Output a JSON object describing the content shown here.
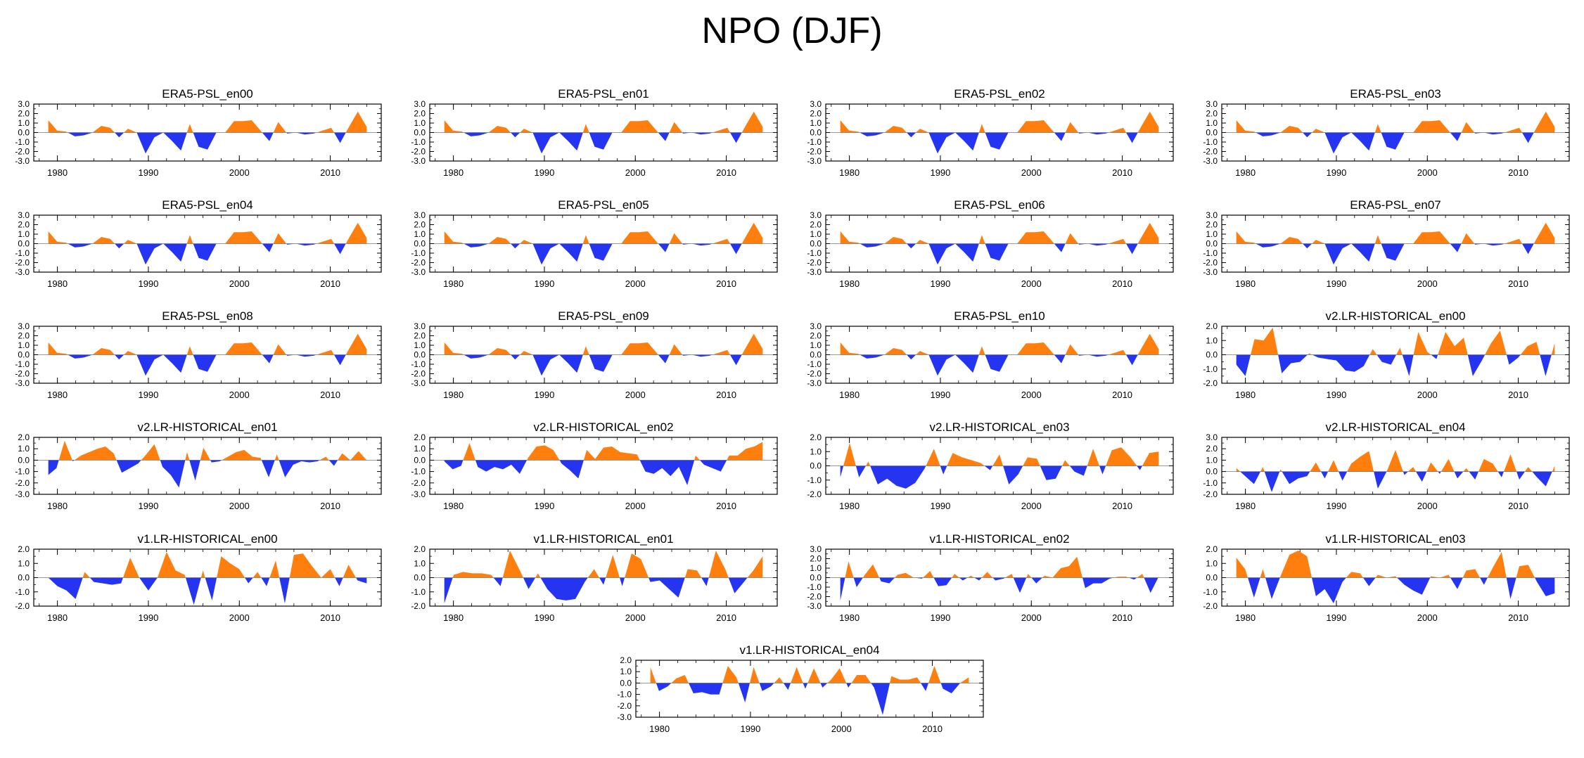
{
  "title": "NPO (DJF)",
  "colors": {
    "positive": "#ff7f0e",
    "negative": "#2434f0",
    "axis": "#000000"
  },
  "chart_data": [
    {
      "type": "area",
      "title": "ERA5-PSL_en00",
      "ylim": [
        -3,
        3
      ],
      "yticks": [
        "3.0",
        "2.0",
        "1.0",
        "0.0",
        "-1.0",
        "-2.0",
        "-3.0"
      ],
      "xticks": [
        "1980",
        "1990",
        "2000",
        "2010"
      ],
      "x_range": [
        1979,
        2014
      ],
      "values": [
        1.3,
        0.2,
        0.1,
        -0.4,
        -0.3,
        0.0,
        0.7,
        0.5,
        -0.5,
        0.4,
        0.0,
        -2.2,
        -0.5,
        0.0,
        -0.9,
        -1.9,
        0.9,
        -1.5,
        -1.8,
        0.0,
        0.0,
        1.2,
        1.2,
        1.3,
        0.2,
        -0.9,
        1.1,
        -0.1,
        0.0,
        -0.2,
        -0.1,
        0.2,
        0.5,
        -1.1,
        0.6,
        2.2,
        0.6
      ]
    },
    {
      "type": "area",
      "title": "ERA5-PSL_en01",
      "ylim": [
        -3,
        3
      ],
      "yticks": [
        "3.0",
        "2.0",
        "1.0",
        "0.0",
        "-1.0",
        "-2.0",
        "-3.0"
      ],
      "xticks": [
        "1980",
        "1990",
        "2000",
        "2010"
      ],
      "x_range": [
        1979,
        2014
      ],
      "values": [
        1.3,
        0.2,
        0.1,
        -0.4,
        -0.3,
        0.0,
        0.7,
        0.5,
        -0.5,
        0.4,
        0.0,
        -2.2,
        -0.5,
        0.0,
        -0.9,
        -1.9,
        0.9,
        -1.5,
        -1.8,
        0.0,
        0.0,
        1.2,
        1.2,
        1.3,
        0.2,
        -0.9,
        1.1,
        -0.1,
        0.0,
        -0.2,
        -0.1,
        0.2,
        0.5,
        -1.1,
        0.6,
        2.2,
        0.6
      ]
    },
    {
      "type": "area",
      "title": "ERA5-PSL_en02",
      "ylim": [
        -3,
        3
      ],
      "yticks": [
        "3.0",
        "2.0",
        "1.0",
        "0.0",
        "-1.0",
        "-2.0",
        "-3.0"
      ],
      "xticks": [
        "1980",
        "1990",
        "2000",
        "2010"
      ],
      "x_range": [
        1979,
        2014
      ],
      "values": [
        1.3,
        0.2,
        0.1,
        -0.4,
        -0.3,
        0.0,
        0.7,
        0.5,
        -0.5,
        0.4,
        0.0,
        -2.2,
        -0.5,
        0.0,
        -0.9,
        -1.9,
        0.9,
        -1.5,
        -1.8,
        0.0,
        0.0,
        1.2,
        1.2,
        1.3,
        0.2,
        -0.9,
        1.1,
        -0.1,
        0.0,
        -0.2,
        -0.1,
        0.2,
        0.5,
        -1.1,
        0.6,
        2.2,
        0.6
      ]
    },
    {
      "type": "area",
      "title": "ERA5-PSL_en03",
      "ylim": [
        -3,
        3
      ],
      "yticks": [
        "3.0",
        "2.0",
        "1.0",
        "0.0",
        "-1.0",
        "-2.0",
        "-3.0"
      ],
      "xticks": [
        "1980",
        "1990",
        "2000",
        "2010"
      ],
      "x_range": [
        1979,
        2014
      ],
      "values": [
        1.3,
        0.2,
        0.1,
        -0.4,
        -0.3,
        0.0,
        0.7,
        0.5,
        -0.5,
        0.4,
        0.0,
        -2.2,
        -0.5,
        0.0,
        -0.9,
        -1.9,
        0.9,
        -1.5,
        -1.8,
        0.0,
        0.0,
        1.2,
        1.2,
        1.3,
        0.2,
        -0.9,
        1.1,
        -0.1,
        0.0,
        -0.2,
        -0.1,
        0.2,
        0.5,
        -1.1,
        0.6,
        2.2,
        0.6
      ]
    },
    {
      "type": "area",
      "title": "ERA5-PSL_en04",
      "ylim": [
        -3,
        3
      ],
      "yticks": [
        "3.0",
        "2.0",
        "1.0",
        "0.0",
        "-1.0",
        "-2.0",
        "-3.0"
      ],
      "xticks": [
        "1980",
        "1990",
        "2000",
        "2010"
      ],
      "x_range": [
        1979,
        2014
      ],
      "values": [
        1.3,
        0.2,
        0.1,
        -0.4,
        -0.3,
        0.0,
        0.7,
        0.5,
        -0.5,
        0.4,
        0.0,
        -2.2,
        -0.5,
        0.0,
        -0.9,
        -1.9,
        0.9,
        -1.5,
        -1.8,
        0.0,
        0.0,
        1.2,
        1.2,
        1.3,
        0.2,
        -0.9,
        1.1,
        -0.1,
        0.0,
        -0.2,
        -0.1,
        0.2,
        0.5,
        -1.1,
        0.6,
        2.2,
        0.6
      ]
    },
    {
      "type": "area",
      "title": "ERA5-PSL_en05",
      "ylim": [
        -3,
        3
      ],
      "yticks": [
        "3.0",
        "2.0",
        "1.0",
        "0.0",
        "-1.0",
        "-2.0",
        "-3.0"
      ],
      "xticks": [
        "1980",
        "1990",
        "2000",
        "2010"
      ],
      "x_range": [
        1979,
        2014
      ],
      "values": [
        1.3,
        0.2,
        0.1,
        -0.4,
        -0.3,
        0.0,
        0.7,
        0.5,
        -0.5,
        0.4,
        0.0,
        -2.2,
        -0.5,
        0.0,
        -0.9,
        -1.9,
        0.9,
        -1.5,
        -1.8,
        0.0,
        0.0,
        1.2,
        1.2,
        1.3,
        0.2,
        -0.9,
        1.1,
        -0.1,
        0.0,
        -0.2,
        -0.1,
        0.2,
        0.5,
        -1.1,
        0.6,
        2.2,
        0.6
      ]
    },
    {
      "type": "area",
      "title": "ERA5-PSL_en06",
      "ylim": [
        -3,
        3
      ],
      "yticks": [
        "3.0",
        "2.0",
        "1.0",
        "0.0",
        "-1.0",
        "-2.0",
        "-3.0"
      ],
      "xticks": [
        "1980",
        "1990",
        "2000",
        "2010"
      ],
      "x_range": [
        1979,
        2014
      ],
      "values": [
        1.3,
        0.2,
        0.1,
        -0.4,
        -0.3,
        0.0,
        0.7,
        0.5,
        -0.5,
        0.4,
        0.0,
        -2.2,
        -0.5,
        0.0,
        -0.9,
        -1.9,
        0.9,
        -1.5,
        -1.8,
        0.0,
        0.0,
        1.2,
        1.2,
        1.3,
        0.2,
        -0.9,
        1.1,
        -0.1,
        0.0,
        -0.2,
        -0.1,
        0.2,
        0.5,
        -1.1,
        0.6,
        2.2,
        0.6
      ]
    },
    {
      "type": "area",
      "title": "ERA5-PSL_en07",
      "ylim": [
        -3,
        3
      ],
      "yticks": [
        "3.0",
        "2.0",
        "1.0",
        "0.0",
        "-1.0",
        "-2.0",
        "-3.0"
      ],
      "xticks": [
        "1980",
        "1990",
        "2000",
        "2010"
      ],
      "x_range": [
        1979,
        2014
      ],
      "values": [
        1.3,
        0.2,
        0.1,
        -0.4,
        -0.3,
        0.0,
        0.7,
        0.5,
        -0.5,
        0.4,
        0.0,
        -2.2,
        -0.5,
        0.0,
        -0.9,
        -1.9,
        0.9,
        -1.5,
        -1.8,
        0.0,
        0.0,
        1.2,
        1.2,
        1.3,
        0.2,
        -0.9,
        1.1,
        -0.1,
        0.0,
        -0.2,
        -0.1,
        0.2,
        0.5,
        -1.1,
        0.6,
        2.2,
        0.6
      ]
    },
    {
      "type": "area",
      "title": "ERA5-PSL_en08",
      "ylim": [
        -3,
        3
      ],
      "yticks": [
        "3.0",
        "2.0",
        "1.0",
        "0.0",
        "-1.0",
        "-2.0",
        "-3.0"
      ],
      "xticks": [
        "1980",
        "1990",
        "2000",
        "2010"
      ],
      "x_range": [
        1979,
        2014
      ],
      "values": [
        1.3,
        0.2,
        0.1,
        -0.4,
        -0.3,
        0.0,
        0.7,
        0.5,
        -0.5,
        0.4,
        0.0,
        -2.2,
        -0.5,
        0.0,
        -0.9,
        -1.9,
        0.9,
        -1.5,
        -1.8,
        0.0,
        0.0,
        1.2,
        1.2,
        1.3,
        0.2,
        -0.9,
        1.1,
        -0.1,
        0.0,
        -0.2,
        -0.1,
        0.2,
        0.5,
        -1.1,
        0.6,
        2.2,
        0.6
      ]
    },
    {
      "type": "area",
      "title": "ERA5-PSL_en09",
      "ylim": [
        -3,
        3
      ],
      "yticks": [
        "3.0",
        "2.0",
        "1.0",
        "0.0",
        "-1.0",
        "-2.0",
        "-3.0"
      ],
      "xticks": [
        "1980",
        "1990",
        "2000",
        "2010"
      ],
      "x_range": [
        1979,
        2014
      ],
      "values": [
        1.3,
        0.2,
        0.1,
        -0.4,
        -0.3,
        0.0,
        0.7,
        0.5,
        -0.5,
        0.4,
        0.0,
        -2.2,
        -0.5,
        0.0,
        -0.9,
        -1.9,
        0.9,
        -1.5,
        -1.8,
        0.0,
        0.0,
        1.2,
        1.2,
        1.3,
        0.2,
        -0.9,
        1.1,
        -0.1,
        0.0,
        -0.2,
        -0.1,
        0.2,
        0.5,
        -1.1,
        0.6,
        2.2,
        0.6
      ]
    },
    {
      "type": "area",
      "title": "ERA5-PSL_en10",
      "ylim": [
        -3,
        3
      ],
      "yticks": [
        "3.0",
        "2.0",
        "1.0",
        "0.0",
        "-1.0",
        "-2.0",
        "-3.0"
      ],
      "xticks": [
        "1980",
        "1990",
        "2000",
        "2010"
      ],
      "x_range": [
        1979,
        2014
      ],
      "values": [
        1.3,
        0.2,
        0.1,
        -0.4,
        -0.3,
        0.0,
        0.7,
        0.5,
        -0.5,
        0.4,
        0.0,
        -2.2,
        -0.5,
        0.0,
        -0.9,
        -1.9,
        0.9,
        -1.5,
        -1.8,
        0.0,
        0.0,
        1.2,
        1.2,
        1.3,
        0.2,
        -0.9,
        1.1,
        -0.1,
        0.0,
        -0.2,
        -0.1,
        0.2,
        0.5,
        -1.1,
        0.6,
        2.2,
        0.6
      ]
    },
    {
      "type": "area",
      "title": "v2.LR-HISTORICAL_en00",
      "ylim": [
        -2,
        2
      ],
      "yticks": [
        "2.0",
        "1.0",
        "0.0",
        "-1.0",
        "-2.0"
      ],
      "xticks": [
        "1980",
        "1990",
        "2000",
        "2010"
      ],
      "x_range": [
        1979,
        2014
      ],
      "values": [
        -0.7,
        -1.5,
        1.1,
        1.0,
        1.9,
        -1.3,
        -0.6,
        -0.5,
        0.1,
        -0.2,
        -0.3,
        -0.4,
        -1.1,
        -1.2,
        -0.8,
        0.4,
        -0.5,
        -0.7,
        0.5,
        -1.5,
        1.6,
        0.2,
        -0.3,
        1.6,
        0.6,
        1.2,
        -1.5,
        -0.4,
        0.8,
        1.7,
        -0.7,
        -0.2,
        0.6,
        0.9,
        -1.5,
        0.8
      ]
    },
    {
      "type": "area",
      "title": "v2.LR-HISTORICAL_en01",
      "ylim": [
        -3,
        2
      ],
      "yticks": [
        "2.0",
        "1.0",
        "0.0",
        "-1.0",
        "-2.0",
        "-3.0"
      ],
      "xticks": [
        "1980",
        "1990",
        "2000",
        "2010"
      ],
      "x_range": [
        1979,
        2014
      ],
      "values": [
        -1.3,
        -0.7,
        1.7,
        -0.1,
        0.4,
        0.7,
        1.0,
        1.2,
        0.6,
        -1.1,
        -0.7,
        -0.3,
        0.5,
        1.4,
        -0.6,
        -1.3,
        -2.4,
        0.7,
        -1.8,
        1.1,
        -0.2,
        -0.1,
        0.3,
        0.7,
        0.9,
        0.3,
        0.2,
        -1.5,
        0.5,
        -1.5,
        -0.4,
        -0.1,
        -0.2,
        -0.1,
        0.3,
        -0.5,
        0.6,
        0.0,
        0.8,
        0.0
      ]
    },
    {
      "type": "area",
      "title": "v2.LR-HISTORICAL_en02",
      "ylim": [
        -3,
        2
      ],
      "yticks": [
        "2.0",
        "1.0",
        "0.0",
        "-1.0",
        "-2.0",
        "-3.0"
      ],
      "xticks": [
        "1980",
        "1990",
        "2000",
        "2010"
      ],
      "x_range": [
        1979,
        2014
      ],
      "values": [
        -0.1,
        -0.8,
        -0.5,
        1.5,
        -0.6,
        -1.0,
        -0.6,
        -0.8,
        -0.4,
        -1.2,
        0.2,
        1.2,
        1.3,
        0.9,
        -0.3,
        -0.9,
        -1.6,
        0.9,
        0.1,
        1.1,
        1.2,
        0.7,
        0.6,
        0.5,
        -1.0,
        -1.2,
        -0.7,
        -1.4,
        -0.6,
        -2.2,
        0.4,
        -0.4,
        -0.7,
        -1.0,
        0.4,
        0.4,
        1.0,
        1.2,
        1.6
      ]
    },
    {
      "type": "area",
      "title": "v2.LR-HISTORICAL_en03",
      "ylim": [
        -2,
        2
      ],
      "yticks": [
        "2.0",
        "1.0",
        "0.0",
        "-1.0",
        "-2.0"
      ],
      "xticks": [
        "1980",
        "1990",
        "2000",
        "2010"
      ],
      "x_range": [
        1979,
        2014
      ],
      "values": [
        -0.8,
        1.6,
        -0.8,
        0.3,
        -1.3,
        -0.9,
        -1.4,
        -1.6,
        -1.2,
        -0.2,
        1.2,
        -0.6,
        0.9,
        0.6,
        0.4,
        0.2,
        -0.3,
        0.8,
        -1.3,
        -0.6,
        0.6,
        0.5,
        -1.0,
        -0.9,
        0.4,
        -0.4,
        -0.7,
        1.2,
        -0.6,
        1.1,
        1.3,
        0.6,
        -0.3,
        0.9,
        1.0
      ]
    },
    {
      "type": "area",
      "title": "v2.LR-HISTORICAL_en04",
      "ylim": [
        -2,
        3
      ],
      "yticks": [
        "3.0",
        "2.0",
        "1.0",
        "0.0",
        "-1.0",
        "-2.0"
      ],
      "xticks": [
        "1980",
        "1990",
        "2000",
        "2010"
      ],
      "x_range": [
        1979,
        2014
      ],
      "values": [
        0.3,
        -0.4,
        -1.1,
        0.4,
        -1.8,
        0.2,
        -1.1,
        -0.6,
        -0.4,
        0.8,
        -0.6,
        1.0,
        -0.8,
        0.7,
        1.3,
        1.8,
        -1.5,
        0.0,
        1.9,
        -0.3,
        0.4,
        -0.9,
        0.8,
        -0.2,
        1.1,
        -0.6,
        0.3,
        -0.7,
        1.1,
        0.7,
        -0.5,
        1.5,
        -0.7,
        0.4,
        -0.5,
        -1.3,
        0.5
      ]
    },
    {
      "type": "area",
      "title": "v1.LR-HISTORICAL_en00",
      "ylim": [
        -2,
        2
      ],
      "yticks": [
        "2.0",
        "1.0",
        "0.0",
        "-1.0",
        "-2.0"
      ],
      "xticks": [
        "1980",
        "1990",
        "2000",
        "2010"
      ],
      "x_range": [
        1979,
        2014
      ],
      "values": [
        0.0,
        -0.6,
        -0.9,
        -1.5,
        0.4,
        -0.3,
        -0.4,
        -0.5,
        -0.4,
        1.4,
        0.0,
        -0.9,
        0.0,
        1.8,
        0.5,
        0.2,
        -1.9,
        0.5,
        -1.6,
        1.5,
        1.0,
        0.6,
        -0.4,
        0.4,
        -0.6,
        1.2,
        -1.8,
        1.6,
        1.7,
        0.8,
        0.0,
        0.6,
        -0.6,
        0.9,
        -0.2,
        -0.4
      ]
    },
    {
      "type": "area",
      "title": "v1.LR-HISTORICAL_en01",
      "ylim": [
        -2,
        2
      ],
      "yticks": [
        "2.0",
        "1.0",
        "0.0",
        "-1.0",
        "-2.0"
      ],
      "xticks": [
        "1980",
        "1990",
        "2000",
        "2010"
      ],
      "x_range": [
        1979,
        2014
      ],
      "values": [
        -1.8,
        0.2,
        0.4,
        0.3,
        0.3,
        0.2,
        -0.6,
        1.9,
        0.6,
        -0.8,
        0.3,
        -0.8,
        -1.5,
        -1.6,
        -1.5,
        -0.3,
        0.6,
        -0.5,
        1.6,
        -0.6,
        1.7,
        1.3,
        -0.3,
        -0.2,
        -0.8,
        -1.4,
        0.6,
        0.5,
        -0.6,
        1.9,
        0.6,
        -1.1,
        -0.3,
        0.5,
        1.5
      ]
    },
    {
      "type": "area",
      "title": "v1.LR-HISTORICAL_en02",
      "ylim": [
        -3,
        3
      ],
      "yticks": [
        "3.0",
        "2.0",
        "1.0",
        "0.0",
        "-1.0",
        "-2.0",
        "-3.0"
      ],
      "xticks": [
        "1980",
        "1990",
        "2000",
        "2010"
      ],
      "x_range": [
        1979,
        2014
      ],
      "values": [
        -2.4,
        1.7,
        -1.0,
        0.3,
        1.4,
        -0.4,
        -0.6,
        0.3,
        0.5,
        0.0,
        -0.1,
        0.7,
        -0.9,
        -0.8,
        0.4,
        -0.3,
        0.2,
        -0.3,
        0.6,
        -0.3,
        -0.1,
        0.4,
        -1.6,
        0.4,
        -0.6,
        0.2,
        0.0,
        1.0,
        1.2,
        2.2,
        -1.1,
        -0.6,
        -0.6,
        -0.1,
        0.1,
        0.1,
        -0.2,
        0.4,
        -1.6,
        0.1
      ]
    },
    {
      "type": "area",
      "title": "v1.LR-HISTORICAL_en03",
      "ylim": [
        -2,
        2
      ],
      "yticks": [
        "2.0",
        "1.0",
        "0.0",
        "-1.0",
        "-2.0"
      ],
      "xticks": [
        "1980",
        "1990",
        "2000",
        "2010"
      ],
      "x_range": [
        1979,
        2014
      ],
      "values": [
        1.4,
        0.6,
        -1.4,
        0.6,
        -1.5,
        0.1,
        1.6,
        1.9,
        1.5,
        -1.3,
        -0.8,
        -1.8,
        -0.3,
        0.4,
        0.3,
        -0.6,
        0.2,
        0.0,
        0.1,
        -0.5,
        -0.9,
        -1.2,
        0.1,
        0.0,
        0.2,
        -0.8,
        0.5,
        0.6,
        -0.5,
        0.7,
        1.8,
        -1.5,
        0.8,
        0.9,
        -0.3,
        -1.3,
        -1.1
      ]
    },
    {
      "type": "area",
      "title": "v1.LR-HISTORICAL_en04",
      "ylim": [
        -3,
        2
      ],
      "yticks": [
        "2.0",
        "1.0",
        "0.0",
        "-1.0",
        "-2.0",
        "-3.0"
      ],
      "xticks": [
        "1980",
        "1990",
        "2000",
        "2010"
      ],
      "x_range": [
        1979,
        2014
      ],
      "values": [
        1.4,
        -0.7,
        -0.3,
        0.4,
        0.7,
        -0.9,
        -0.8,
        -1.0,
        -1.0,
        1.5,
        0.5,
        -1.7,
        1.4,
        -0.7,
        -0.3,
        0.5,
        -0.6,
        1.4,
        -0.5,
        1.3,
        -0.4,
        0.3,
        1.3,
        -0.4,
        0.7,
        0.7,
        -0.4,
        -2.8,
        0.6,
        0.3,
        0.3,
        0.5,
        -0.7,
        1.5,
        -0.5,
        -0.9,
        0.0,
        0.5
      ]
    }
  ]
}
